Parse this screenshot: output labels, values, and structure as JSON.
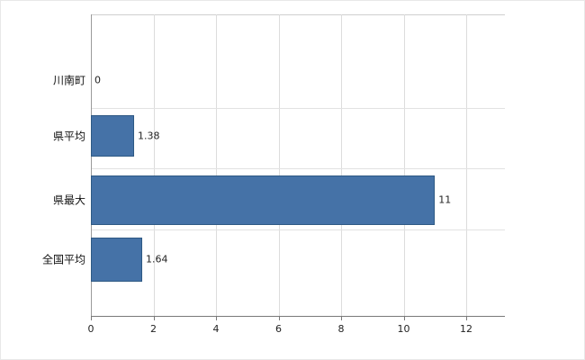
{
  "chart_data": {
    "type": "bar",
    "orientation": "horizontal",
    "title": "",
    "xlabel": "",
    "ylabel": "",
    "categories": [
      "川南町",
      "県平均",
      "県最大",
      "全国平均"
    ],
    "values": [
      0,
      1.38,
      11,
      1.64
    ],
    "value_labels": [
      "0",
      "1.38",
      "11",
      "1.64"
    ],
    "x_ticks": [
      0,
      2,
      4,
      6,
      8,
      10,
      12
    ],
    "xlim": [
      0,
      13.2
    ],
    "grid": "on",
    "legend": "none",
    "bar_color": "#4572a7",
    "bar_border_color": "#2e5984",
    "gridline_color": "#dcdcdc",
    "axis_color": "#7a7a7a",
    "text_color": "#222222"
  }
}
